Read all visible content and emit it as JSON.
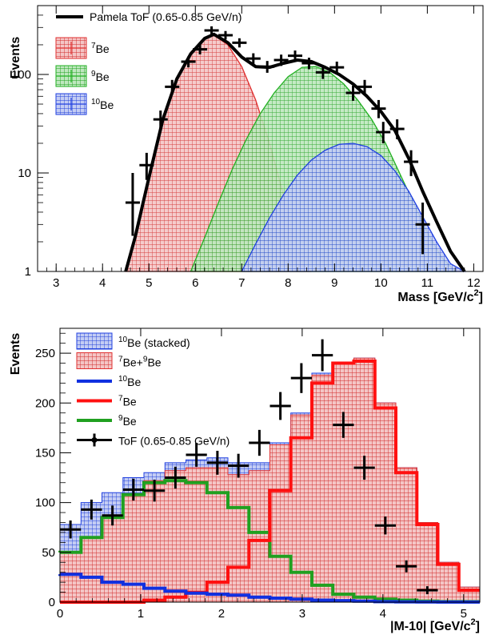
{
  "chart_data": [
    {
      "type": "area",
      "id": "top",
      "xlabel": "Mass [GeV/c",
      "xlabel_sup": "2",
      "xlabel_close": "]",
      "ylabel": "Events",
      "y_scale": "log",
      "xlim": [
        2.6,
        12.2
      ],
      "ylim": [
        1,
        500
      ],
      "x_ticks": [
        "3",
        "4",
        "5",
        "6",
        "7",
        "8",
        "9",
        "10",
        "11",
        "12"
      ],
      "y_ticks": [
        "1",
        "10",
        "100"
      ],
      "legend": [
        {
          "label": "Pamela ToF (0.65-0.85 GeV/n)",
          "sup": "",
          "suffix": "",
          "color": "#000000",
          "kind": "line"
        },
        {
          "label": "",
          "sup": "7",
          "suffix": "Be",
          "color": "#e03030",
          "kind": "fill"
        },
        {
          "label": "",
          "sup": "9",
          "suffix": "Be",
          "color": "#20b020",
          "kind": "fill"
        },
        {
          "label": "",
          "sup": "10",
          "suffix": "Be",
          "color": "#2040e0",
          "kind": "fill"
        }
      ],
      "colors": {
        "be7": "#e03030",
        "be9": "#20b020",
        "be10": "#2040e0",
        "data": "#000000"
      },
      "series": [
        {
          "name": "7Be",
          "x": [
            4.5,
            4.7,
            5.0,
            5.3,
            5.6,
            5.9,
            6.2,
            6.4,
            6.7,
            7.0,
            7.3,
            7.6,
            7.9,
            8.1,
            8.3,
            8.5
          ],
          "values": [
            1,
            2.2,
            9,
            35,
            90,
            160,
            230,
            250,
            200,
            120,
            55,
            20,
            6,
            2.5,
            1.2,
            1
          ]
        },
        {
          "name": "9Be",
          "x": [
            5.9,
            6.2,
            6.5,
            6.8,
            7.1,
            7.4,
            7.7,
            8.0,
            8.3,
            8.6,
            8.9,
            9.2,
            9.5,
            9.8,
            10.1,
            10.4,
            10.7,
            11.0,
            11.3,
            11.6
          ],
          "values": [
            1,
            2.2,
            5,
            11,
            22,
            40,
            65,
            95,
            118,
            120,
            105,
            80,
            55,
            35,
            20,
            10,
            5,
            2.5,
            1.4,
            1
          ]
        },
        {
          "name": "10Be",
          "x": [
            7.0,
            7.3,
            7.6,
            7.9,
            8.2,
            8.5,
            8.8,
            9.1,
            9.4,
            9.7,
            10.0,
            10.3,
            10.6,
            10.9,
            11.2,
            11.5,
            11.8
          ],
          "values": [
            1,
            1.9,
            3.5,
            6,
            9.5,
            13.5,
            17,
            19.5,
            20,
            18.5,
            15,
            10.5,
            6.5,
            3.6,
            2,
            1.2,
            1
          ]
        },
        {
          "name": "total",
          "x": [
            4.5,
            4.7,
            5.0,
            5.3,
            5.6,
            5.9,
            6.2,
            6.4,
            6.7,
            7.0,
            7.3,
            7.6,
            7.9,
            8.2,
            8.5,
            8.8,
            9.1,
            9.4,
            9.7,
            10.0,
            10.3,
            10.6,
            10.9,
            11.2,
            11.5,
            11.8
          ],
          "values": [
            1,
            2.2,
            9,
            35,
            90,
            162,
            232,
            256,
            210,
            150,
            120,
            118,
            130,
            140,
            135,
            118,
            100,
            80,
            60,
            42,
            27,
            14,
            6.5,
            3.2,
            1.6,
            1
          ]
        }
      ],
      "points": [
        {
          "x": 4.65,
          "y": 5,
          "ylo": 2.3,
          "yhi": 10
        },
        {
          "x": 4.95,
          "y": 12,
          "ylo": 8.5,
          "yhi": 16
        },
        {
          "x": 5.25,
          "y": 35,
          "ylo": 28,
          "yhi": 43
        },
        {
          "x": 5.5,
          "y": 75,
          "ylo": 63,
          "yhi": 88
        },
        {
          "x": 5.85,
          "y": 135,
          "ylo": 118,
          "yhi": 152
        },
        {
          "x": 6.1,
          "y": 180,
          "ylo": 160,
          "yhi": 202
        },
        {
          "x": 6.35,
          "y": 280,
          "ylo": 255,
          "yhi": 308
        },
        {
          "x": 6.65,
          "y": 250,
          "ylo": 226,
          "yhi": 276
        },
        {
          "x": 6.95,
          "y": 210,
          "ylo": 188,
          "yhi": 233
        },
        {
          "x": 7.25,
          "y": 145,
          "ylo": 127,
          "yhi": 164
        },
        {
          "x": 7.55,
          "y": 120,
          "ylo": 104,
          "yhi": 137
        },
        {
          "x": 7.85,
          "y": 140,
          "ylo": 122,
          "yhi": 159
        },
        {
          "x": 8.15,
          "y": 155,
          "ylo": 136,
          "yhi": 175
        },
        {
          "x": 8.45,
          "y": 130,
          "ylo": 113,
          "yhi": 148
        },
        {
          "x": 8.75,
          "y": 105,
          "ylo": 90,
          "yhi": 121
        },
        {
          "x": 9.05,
          "y": 118,
          "ylo": 102,
          "yhi": 135
        },
        {
          "x": 9.4,
          "y": 65,
          "ylo": 54,
          "yhi": 77
        },
        {
          "x": 9.65,
          "y": 75,
          "ylo": 63,
          "yhi": 88
        },
        {
          "x": 9.95,
          "y": 45,
          "ylo": 36,
          "yhi": 55
        },
        {
          "x": 10.05,
          "y": 26,
          "ylo": 20,
          "yhi": 33
        },
        {
          "x": 10.35,
          "y": 28,
          "ylo": 22,
          "yhi": 35
        },
        {
          "x": 10.65,
          "y": 13,
          "ylo": 9.3,
          "yhi": 17
        },
        {
          "x": 10.9,
          "y": 3,
          "ylo": 1.5,
          "yhi": 5
        }
      ]
    },
    {
      "type": "bar",
      "id": "bottom",
      "xlabel": "|M-10| [GeV/c",
      "xlabel_sup": "2",
      "xlabel_close": "]",
      "ylabel": "Events",
      "xlim": [
        0,
        5.2
      ],
      "ylim": [
        0,
        275
      ],
      "x_ticks": [
        "0",
        "1",
        "2",
        "3",
        "4",
        "5"
      ],
      "y_ticks": [
        "0",
        "50",
        "100",
        "150",
        "200",
        "250"
      ],
      "legend": [
        {
          "label": "",
          "sup": "10",
          "suffix": "Be (stacked)",
          "color": "#2040e0",
          "kind": "fill"
        },
        {
          "label": "",
          "sup": "7",
          "suffix": "Be+",
          "sup2": "9",
          "suffix2": "Be",
          "color": "#e03030",
          "kind": "fill"
        },
        {
          "label": "",
          "sup": "10",
          "suffix": "Be",
          "color": "#1030e0",
          "kind": "line"
        },
        {
          "label": "",
          "sup": "7",
          "suffix": "Be",
          "color": "#ff1010",
          "kind": "line"
        },
        {
          "label": "",
          "sup": "9",
          "suffix": "Be",
          "color": "#20a020",
          "kind": "line"
        },
        {
          "label": "ToF (0.65-0.85 GeV/n)",
          "sup": "",
          "suffix": "",
          "color": "#000000",
          "kind": "marker"
        }
      ],
      "colors": {
        "stacked10": "#2040e0",
        "sum79": "#e03030",
        "l10": "#1030e0",
        "l7": "#ff1010",
        "l9": "#20a020",
        "data": "#000000"
      },
      "bin_edges": [
        0,
        0.26,
        0.52,
        0.78,
        1.04,
        1.3,
        1.56,
        1.82,
        2.08,
        2.34,
        2.6,
        2.86,
        3.12,
        3.38,
        3.64,
        3.9,
        4.16,
        4.42,
        4.68,
        4.94,
        5.2
      ],
      "series": [
        {
          "name": "10Be (stacked)",
          "values": [
            78,
            100,
            110,
            125,
            130,
            140,
            143,
            145,
            140,
            140,
            160,
            190,
            230,
            240,
            245,
            200,
            135,
            80,
            40,
            15
          ]
        },
        {
          "name": "7Be+9Be",
          "values": [
            50,
            65,
            85,
            108,
            122,
            132,
            135,
            135,
            128,
            132,
            158,
            188,
            228,
            240,
            245,
            200,
            135,
            80,
            40,
            15
          ]
        },
        {
          "name": "10Be",
          "values": [
            28,
            25,
            20,
            18,
            14,
            11,
            9,
            8,
            7,
            5,
            4,
            3,
            2,
            1.5,
            1,
            0.5,
            0.3,
            0.2,
            0.1,
            0.1
          ]
        },
        {
          "name": "7Be",
          "values": [
            0,
            0,
            0,
            0,
            2,
            5,
            10,
            20,
            35,
            62,
            112,
            165,
            220,
            240,
            242,
            195,
            130,
            78,
            38,
            12
          ]
        },
        {
          "name": "9Be",
          "values": [
            50,
            65,
            85,
            108,
            120,
            122,
            120,
            110,
            95,
            70,
            46,
            30,
            17,
            8,
            5,
            3,
            2,
            1,
            0.5,
            0.5
          ]
        }
      ],
      "points": [
        {
          "x": 0.13,
          "y": 73,
          "err": 9
        },
        {
          "x": 0.39,
          "y": 93,
          "err": 10
        },
        {
          "x": 0.65,
          "y": 87,
          "err": 10
        },
        {
          "x": 0.91,
          "y": 113,
          "err": 11
        },
        {
          "x": 1.17,
          "y": 112,
          "err": 11
        },
        {
          "x": 1.43,
          "y": 125,
          "err": 11
        },
        {
          "x": 1.69,
          "y": 148,
          "err": 12
        },
        {
          "x": 1.95,
          "y": 140,
          "err": 12
        },
        {
          "x": 2.21,
          "y": 137,
          "err": 12
        },
        {
          "x": 2.47,
          "y": 160,
          "err": 13
        },
        {
          "x": 2.73,
          "y": 197,
          "err": 14
        },
        {
          "x": 2.99,
          "y": 225,
          "err": 15
        },
        {
          "x": 3.25,
          "y": 248,
          "err": 16
        },
        {
          "x": 3.51,
          "y": 178,
          "err": 13
        },
        {
          "x": 3.77,
          "y": 135,
          "err": 12
        },
        {
          "x": 4.03,
          "y": 77,
          "err": 9
        },
        {
          "x": 4.29,
          "y": 36,
          "err": 6
        },
        {
          "x": 4.55,
          "y": 12,
          "err": 4
        }
      ]
    }
  ]
}
